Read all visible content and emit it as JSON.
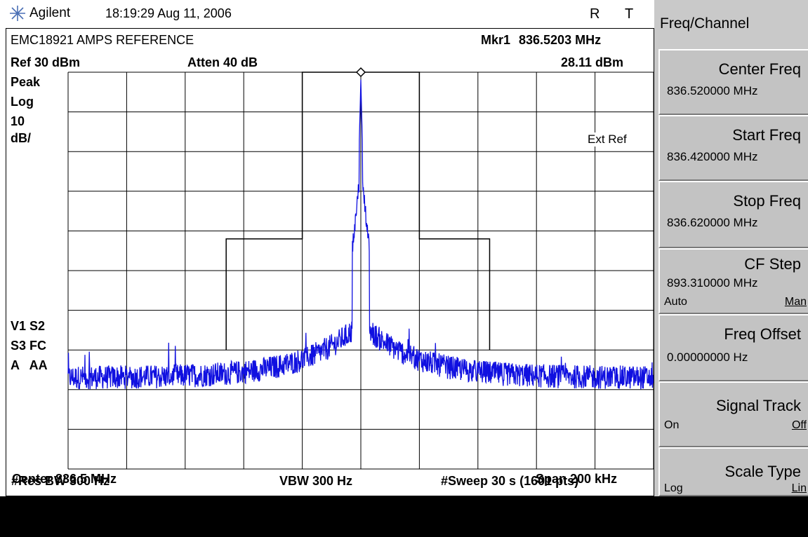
{
  "header": {
    "brand": "Agilent",
    "datetime": "18:19:29  Aug 11, 2006",
    "status_r": "R",
    "status_t": "T"
  },
  "display": {
    "title": "EMC18921 AMPS REFERENCE",
    "marker_label": "Mkr1",
    "marker_freq": "836.5203 MHz",
    "marker_amp": "28.11 dBm",
    "ref_level": "Ref 30 dBm",
    "atten": "Atten 40 dB",
    "detector": "Peak",
    "scale_type": "Log",
    "scale_div": "10",
    "scale_unit": "dB/",
    "ext_ref": "Ext Ref",
    "flags": [
      "V1  S2",
      "S3  FC",
      "A   AA"
    ],
    "center": "Center 836.5 MHz",
    "span": "Span 200 kHz",
    "res_bw": "#Res BW 300 Hz",
    "vbw": "VBW 300 Hz",
    "sweep": "#Sweep 30 s (1601 pts)"
  },
  "softkeys": {
    "menu_title": "Freq/Channel",
    "keys": [
      {
        "name": "Center Freq",
        "value": "836.520000 MHz"
      },
      {
        "name": "Start Freq",
        "value": "836.420000 MHz"
      },
      {
        "name": "Stop Freq",
        "value": "836.620000 MHz"
      },
      {
        "name": "CF Step",
        "value": "893.310000 MHz",
        "opt_left": "Auto",
        "opt_right": "Man"
      },
      {
        "name": "Freq Offset",
        "value": "0.00000000  Hz"
      },
      {
        "name": "Signal Track",
        "opt_left": "On",
        "opt_right": "Off"
      },
      {
        "name": "Scale Type",
        "opt_left": "Log",
        "opt_right": "Lin"
      }
    ]
  },
  "colors": {
    "trace": "#1010e0",
    "grid": "#000000",
    "softkey_bg": "#c3c3c3"
  },
  "chart_data": {
    "type": "line",
    "ref_level_dbm": 30,
    "scale_db_per_div": 10,
    "divisions_x": 10,
    "divisions_y": 10,
    "center_mhz": 836.5,
    "span_khz": 200,
    "marker": {
      "freq_mhz": 836.5203,
      "amp_dbm": 28.11
    },
    "noise_floor_dbm": -47,
    "limit_mask": [
      {
        "x_div": 2.7,
        "y_dbm": -40
      },
      {
        "x_div": 2.7,
        "y_dbm": -12
      },
      {
        "x_div": 4.0,
        "y_dbm": -12
      },
      {
        "x_div": 4.0,
        "y_dbm": 30
      },
      {
        "x_div": 6.0,
        "y_dbm": 30
      },
      {
        "x_div": 6.0,
        "y_dbm": 22
      },
      {
        "x_div": 6.0,
        "y_dbm": -12
      },
      {
        "x_div": 7.2,
        "y_dbm": -12
      },
      {
        "x_div": 7.2,
        "y_dbm": -40
      }
    ],
    "peak_div": 5.0
  }
}
